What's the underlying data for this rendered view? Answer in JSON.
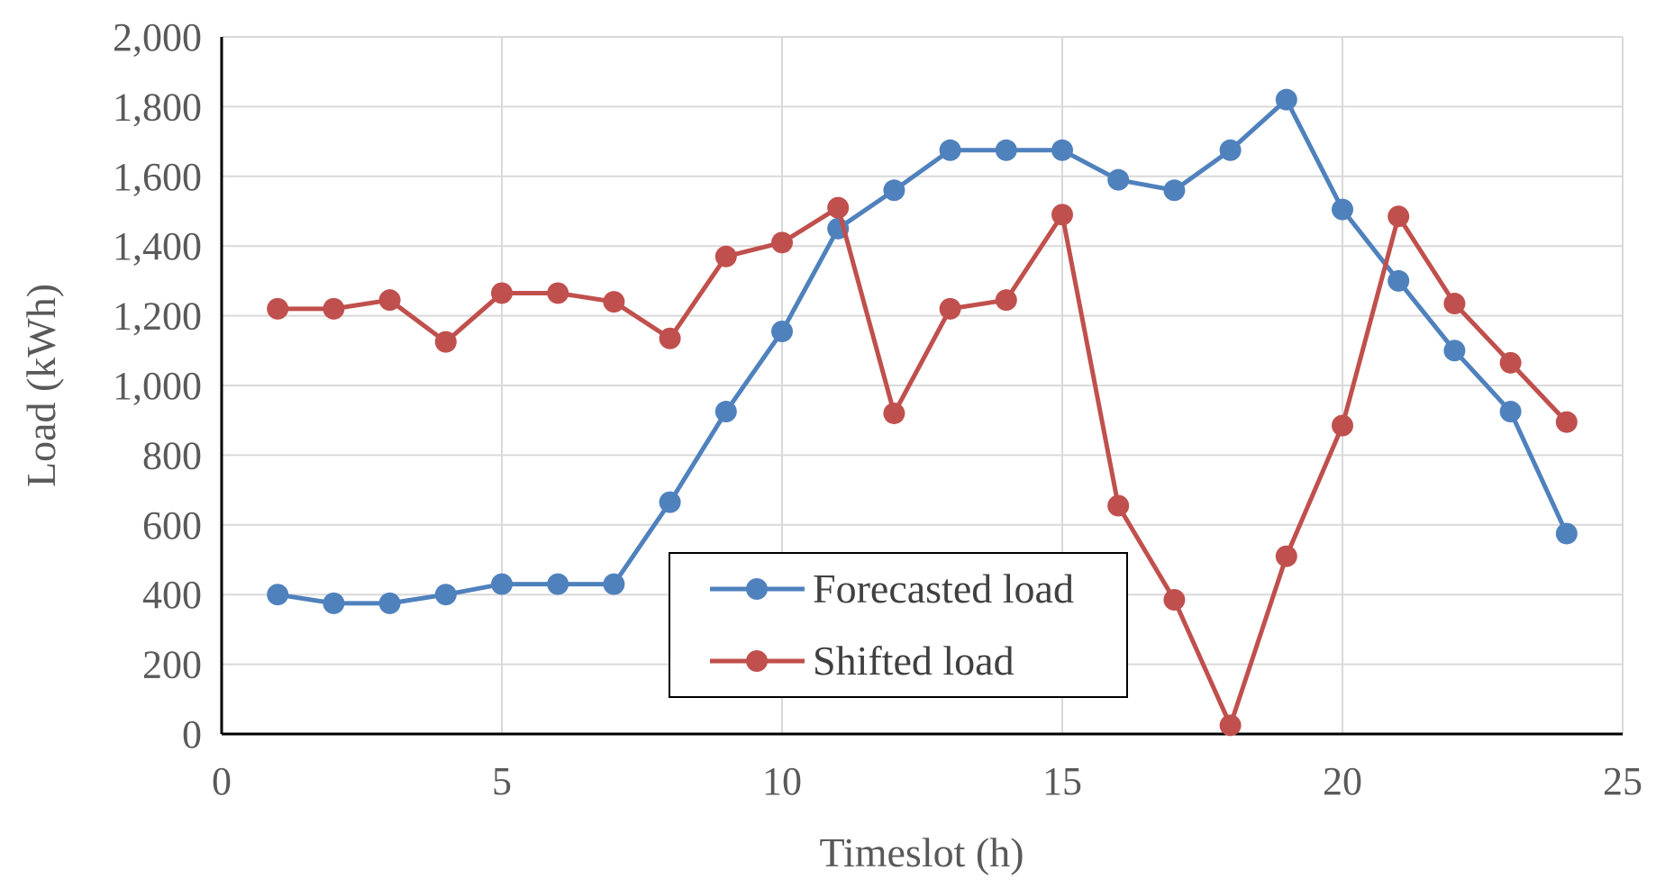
{
  "chart_data": {
    "type": "line",
    "title": "",
    "xlabel": "Timeslot (h)",
    "ylabel": "Load (kWh)",
    "xlim": [
      0,
      25
    ],
    "ylim": [
      0,
      2000
    ],
    "xticks": [
      0,
      5,
      10,
      15,
      20,
      25
    ],
    "yticks": [
      0,
      200,
      400,
      600,
      800,
      1000,
      1200,
      1400,
      1600,
      1800,
      2000
    ],
    "x_tick_labels": [
      "0",
      "5",
      "10",
      "15",
      "20",
      "25"
    ],
    "y_tick_labels": [
      "0",
      "200",
      "400",
      "600",
      "800",
      "1,000",
      "1,200",
      "1,400",
      "1,600",
      "1,800",
      "2,000"
    ],
    "grid": true,
    "legend_position": "bottom-center",
    "x": [
      1,
      2,
      3,
      4,
      5,
      6,
      7,
      8,
      9,
      10,
      11,
      12,
      13,
      14,
      15,
      16,
      17,
      18,
      19,
      20,
      21,
      22,
      23,
      24
    ],
    "series": [
      {
        "name": "Forecasted load",
        "color": "#4f81bd",
        "values": [
          400,
          375,
          375,
          400,
          430,
          430,
          430,
          665,
          925,
          1155,
          1450,
          1560,
          1675,
          1675,
          1675,
          1590,
          1560,
          1675,
          1820,
          1505,
          1300,
          1100,
          925,
          575
        ]
      },
      {
        "name": "Shifted load",
        "color": "#c0504d",
        "values": [
          1220,
          1220,
          1245,
          1125,
          1265,
          1265,
          1240,
          1135,
          1370,
          1410,
          1510,
          920,
          1220,
          1245,
          1490,
          655,
          385,
          25,
          510,
          885,
          1485,
          1235,
          1065,
          895
        ]
      }
    ]
  }
}
